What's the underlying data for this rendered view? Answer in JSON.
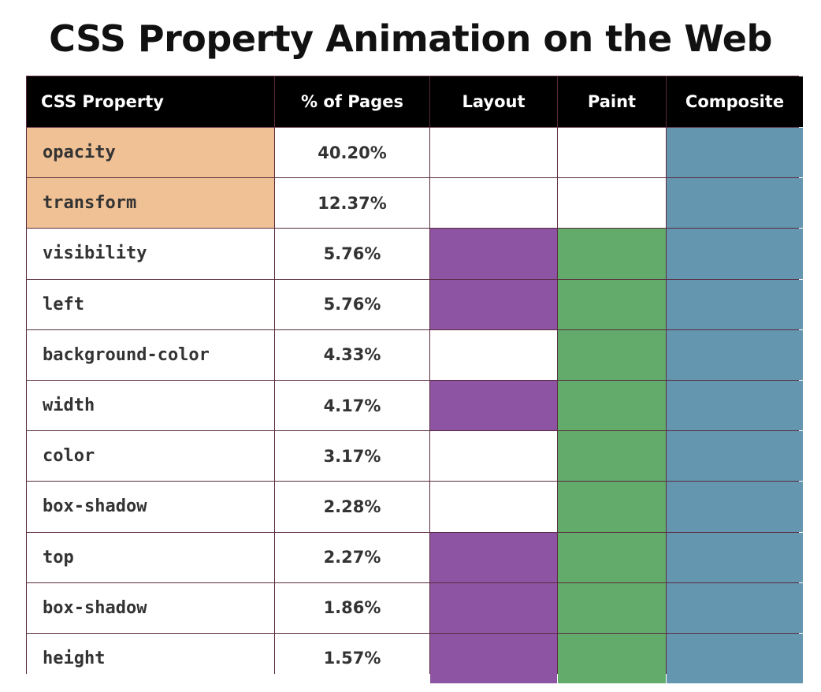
{
  "chart_data": {
    "type": "table",
    "title": "CSS Property Animation on the Web",
    "columns": [
      "CSS Property",
      "% of Pages",
      "Layout",
      "Paint",
      "Composite"
    ],
    "rows": [
      {
        "property": "opacity",
        "pages": "40.20%",
        "layout": false,
        "paint": false,
        "composite": true
      },
      {
        "property": "transform",
        "pages": "12.37%",
        "layout": false,
        "paint": false,
        "composite": true
      },
      {
        "property": "visibility",
        "pages": "5.76%",
        "layout": true,
        "paint": true,
        "composite": true
      },
      {
        "property": "left",
        "pages": "5.76%",
        "layout": true,
        "paint": true,
        "composite": true
      },
      {
        "property": "background-color",
        "pages": "4.33%",
        "layout": false,
        "paint": true,
        "composite": true
      },
      {
        "property": "width",
        "pages": "4.17%",
        "layout": true,
        "paint": true,
        "composite": true
      },
      {
        "property": "color",
        "pages": "3.17%",
        "layout": false,
        "paint": true,
        "composite": true
      },
      {
        "property": "box-shadow",
        "pages": "2.28%",
        "layout": false,
        "paint": true,
        "composite": true
      },
      {
        "property": "top",
        "pages": "2.27%",
        "layout": true,
        "paint": true,
        "composite": true
      },
      {
        "property": "box-shadow",
        "pages": "1.86%",
        "layout": true,
        "paint": true,
        "composite": true
      },
      {
        "property": "height",
        "pages": "1.57%",
        "layout": true,
        "paint": true,
        "composite": true
      }
    ],
    "highlighted_rows": [
      0,
      1
    ],
    "colors": {
      "header_bg": "#000000",
      "highlight": "#f0c195",
      "layout": "#8e54a4",
      "paint": "#62ab6b",
      "composite": "#6596b0",
      "border": "#5a2a3e"
    }
  }
}
